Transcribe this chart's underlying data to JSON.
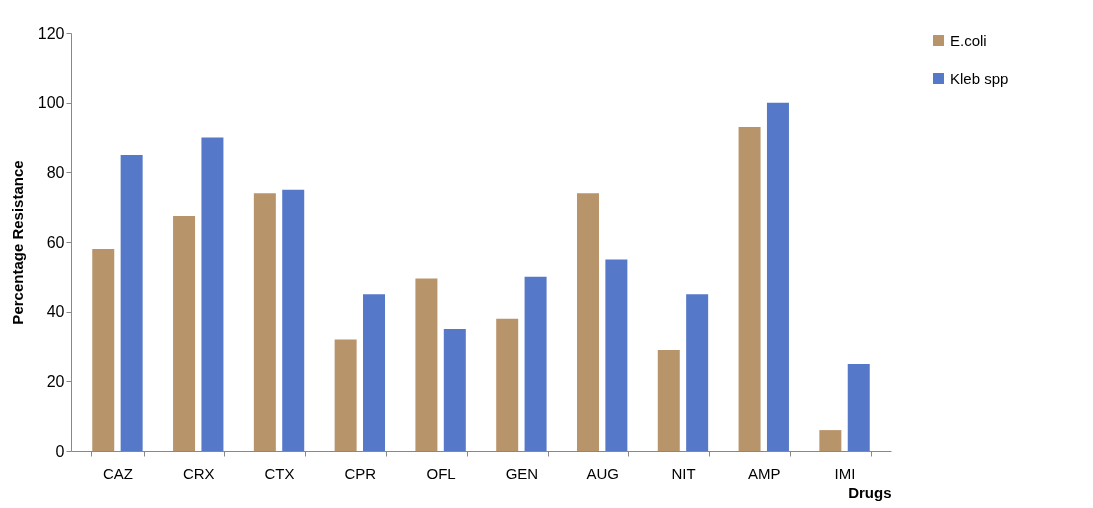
{
  "chart_data": {
    "type": "bar",
    "xlabel": "Drugs",
    "ylabel": "Percentage Resistance",
    "categories": [
      "CAZ",
      "CRX",
      "CTX",
      "CPR",
      "OFL",
      "GEN",
      "AUG",
      "NIT",
      "AMP",
      "IMI"
    ],
    "series": [
      {
        "name": "E.coli",
        "color": "#b8946a",
        "values": [
          58,
          67.5,
          74,
          32,
          49.5,
          38,
          74,
          29,
          93,
          6
        ]
      },
      {
        "name": "Kleb spp",
        "color": "#5578c8",
        "values": [
          85,
          90,
          75,
          45,
          35,
          50,
          55,
          45,
          100,
          25
        ]
      }
    ],
    "ylim": [
      0,
      120
    ],
    "yticks": [
      0,
      20,
      40,
      60,
      80,
      100,
      120
    ],
    "grid": false,
    "legend": "right"
  }
}
